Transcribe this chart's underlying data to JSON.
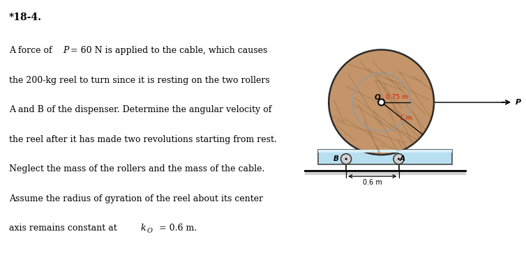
{
  "title": "*18-4.",
  "problem_lines": [
    "A force of P = 60 N is applied to the cable, which causes",
    "the 200-kg reel to turn since it is resting on the two rollers",
    "A and B of the dispenser. Determine the angular velocity of",
    "the reel after it has made two revolutions starting from rest.",
    "Neglect the mass of the rollers and the mass of the cable.",
    "Assume the radius of gyration of the reel about its center",
    "axis remains constant at k_o = 0.6 m."
  ],
  "bg_color": "#ffffff",
  "reel_face_color": "#c4956a",
  "reel_edge_color": "#2a2a2a",
  "inner_circle_color": "#aaaaaa",
  "dispenser_face_color": "#b8dff0",
  "dispenser_edge_color": "#555555",
  "ground_color": "#d8d8d8",
  "roller_face_color": "#d0d0d0",
  "roller_edge_color": "#333333"
}
